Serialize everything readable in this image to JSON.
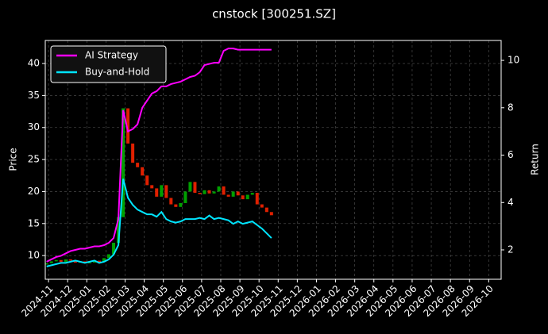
{
  "chart_data": {
    "type": "candlestick",
    "title": "cnstock [300251.SZ]",
    "ylabel": "Price",
    "y2label": "Return",
    "x": [
      -0.1,
      0.15,
      0.4,
      0.65,
      0.9,
      1.15,
      1.4,
      1.65,
      1.9,
      2.15,
      2.4,
      2.65,
      2.9,
      3.15,
      3.4,
      3.65,
      3.9,
      4.15,
      4.4,
      4.65,
      4.9,
      5.15,
      5.4,
      5.65,
      5.9,
      6.15,
      6.4,
      6.65,
      6.9,
      7.15,
      7.4,
      7.65,
      7.9,
      8.15,
      8.4,
      8.65,
      8.9,
      9.15,
      9.4,
      9.65,
      9.9,
      10.15,
      10.4,
      10.65,
      10.9,
      11.15,
      11.4,
      11.65
    ],
    "xlim": [
      -0.17,
      23.65
    ],
    "xticks": [
      {
        "value": 0,
        "label": "2024-11"
      },
      {
        "value": 1,
        "label": "2024-12"
      },
      {
        "value": 2,
        "label": "2025-01"
      },
      {
        "value": 3,
        "label": "2025-02"
      },
      {
        "value": 4,
        "label": "2025-03"
      },
      {
        "value": 5,
        "label": "2025-04"
      },
      {
        "value": 6,
        "label": "2025-05"
      },
      {
        "value": 7,
        "label": "2025-06"
      },
      {
        "value": 8,
        "label": "2025-07"
      },
      {
        "value": 9,
        "label": "2025-08"
      },
      {
        "value": 10,
        "label": "2025-09"
      },
      {
        "value": 11,
        "label": "2025-10"
      },
      {
        "value": 12,
        "label": "2025-11"
      },
      {
        "value": 13,
        "label": "2025-12"
      },
      {
        "value": 14,
        "label": "2026-01"
      },
      {
        "value": 15,
        "label": "2026-02"
      },
      {
        "value": 16,
        "label": "2026-03"
      },
      {
        "value": 17,
        "label": "2026-04"
      },
      {
        "value": 18,
        "label": "2026-05"
      },
      {
        "value": 19,
        "label": "2026-06"
      },
      {
        "value": 20,
        "label": "2026-07"
      },
      {
        "value": 21,
        "label": "2026-08"
      },
      {
        "value": 22,
        "label": "2026-09"
      },
      {
        "value": 23,
        "label": "2026-10"
      }
    ],
    "ylim": [
      6.3,
      43.6
    ],
    "yticks": [
      10,
      15,
      20,
      25,
      30,
      35,
      40
    ],
    "y2lim": [
      0.76,
      10.84
    ],
    "y2ticks": [
      2,
      4,
      6,
      8,
      10
    ],
    "grid": true,
    "legend": "upper left",
    "candles": {
      "up_color": "#00a000",
      "down_color": "#e02000",
      "open": [
        8.6,
        8.8,
        9.1,
        9.3,
        9.0,
        9.4,
        9.2,
        8.9,
        9.1,
        8.8,
        8.9,
        9.2,
        9.0,
        9.6,
        10.2,
        12.0,
        16.0,
        33.0,
        27.5,
        24.5,
        23.8,
        22.5,
        21.0,
        20.5,
        19.2,
        21.0,
        19.0,
        18.0,
        17.6,
        18.2,
        20.0,
        21.5,
        19.8,
        19.6,
        20.2,
        19.7,
        20.0,
        20.8,
        19.5,
        19.2,
        20.0,
        19.4,
        18.8,
        19.5,
        19.8,
        18.0,
        17.5,
        16.8
      ],
      "close": [
        8.8,
        9.1,
        9.3,
        9.0,
        9.4,
        9.2,
        8.9,
        9.1,
        8.8,
        8.9,
        9.2,
        9.0,
        9.6,
        10.2,
        12.0,
        16.0,
        33.0,
        27.5,
        24.5,
        23.8,
        22.5,
        21.0,
        20.5,
        19.2,
        21.0,
        19.0,
        18.0,
        17.6,
        18.2,
        20.0,
        21.5,
        19.8,
        19.6,
        20.2,
        19.7,
        20.0,
        20.8,
        19.5,
        19.2,
        20.0,
        19.4,
        18.8,
        19.5,
        19.8,
        18.0,
        17.5,
        16.8,
        16.3
      ]
    },
    "series": [
      {
        "name": "AI Strategy",
        "color": "#ff00ff",
        "axis": "y2",
        "values": [
          1.5,
          1.6,
          1.7,
          1.75,
          1.85,
          1.95,
          2.0,
          2.05,
          2.05,
          2.1,
          2.15,
          2.15,
          2.2,
          2.3,
          2.5,
          3.3,
          7.9,
          7.0,
          7.1,
          7.3,
          8.0,
          8.3,
          8.6,
          8.7,
          8.9,
          8.9,
          9.0,
          9.05,
          9.1,
          9.2,
          9.3,
          9.35,
          9.5,
          9.8,
          9.85,
          9.9,
          9.9,
          10.4,
          10.5,
          10.5,
          10.45,
          10.45,
          10.45,
          10.45,
          10.45,
          10.45,
          10.45,
          10.45
        ]
      },
      {
        "name": "Buy-and-Hold",
        "color": "#00e5ff",
        "axis": "y2",
        "values": [
          1.3,
          1.35,
          1.4,
          1.45,
          1.45,
          1.5,
          1.55,
          1.5,
          1.45,
          1.5,
          1.55,
          1.45,
          1.5,
          1.6,
          1.8,
          2.2,
          5.0,
          4.2,
          3.9,
          3.7,
          3.6,
          3.5,
          3.5,
          3.4,
          3.6,
          3.3,
          3.2,
          3.15,
          3.2,
          3.3,
          3.3,
          3.3,
          3.35,
          3.3,
          3.45,
          3.3,
          3.35,
          3.3,
          3.25,
          3.1,
          3.2,
          3.1,
          3.15,
          3.2,
          3.05,
          2.9,
          2.7,
          2.5
        ]
      }
    ]
  }
}
